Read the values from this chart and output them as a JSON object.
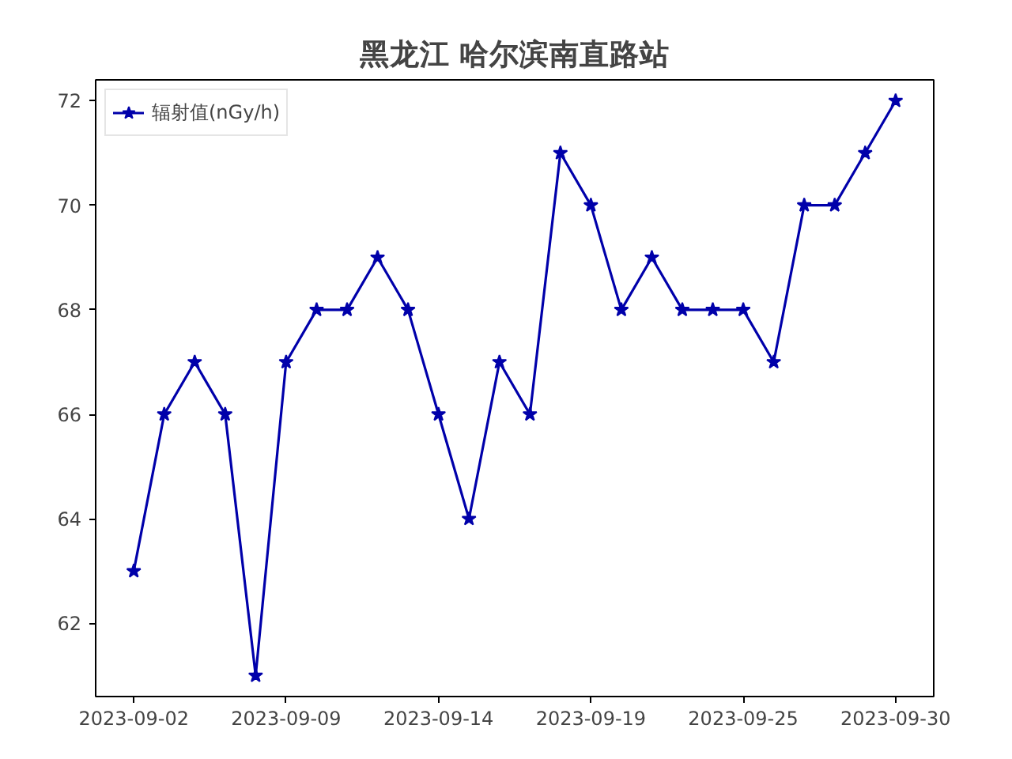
{
  "chart_data": {
    "type": "line",
    "title": "黑龙江 哈尔滨南直路站",
    "categories": [
      "2023-09-02",
      null,
      null,
      null,
      null,
      "2023-09-09",
      null,
      null,
      null,
      null,
      "2023-09-14",
      null,
      null,
      null,
      null,
      "2023-09-19",
      null,
      null,
      null,
      null,
      "2023-09-25",
      null,
      null,
      null,
      null,
      "2023-09-30"
    ],
    "series": [
      {
        "name": "辐射值(nGy/h)",
        "color": "#0000aa",
        "values": [
          63,
          66,
          67,
          66,
          61,
          67,
          68,
          68,
          69,
          68,
          66,
          64,
          67,
          66,
          71,
          70,
          68,
          69,
          68,
          68,
          68,
          67,
          70,
          70,
          71,
          72
        ]
      }
    ],
    "ylim": [
      60.6,
      72.4
    ],
    "yticks": [
      62,
      64,
      66,
      68,
      70,
      72
    ],
    "marker": "star",
    "line_style": "solid",
    "legend": "top left",
    "grid": false
  }
}
